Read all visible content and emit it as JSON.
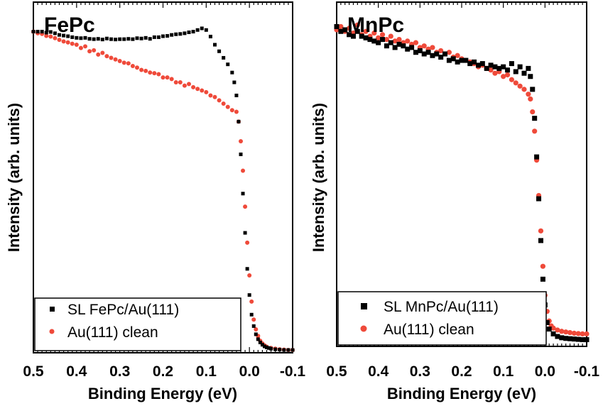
{
  "colors": {
    "sl": "#000000",
    "clean": "#ef4a3a"
  },
  "chart_data": [
    {
      "type": "scatter",
      "title": "FePc",
      "xlabel": "Binding Energy (eV)",
      "ylabel": "Intensity (arb. units)",
      "xlim": [
        0.5,
        -0.1
      ],
      "ylim": [
        0,
        1.05
      ],
      "x_ticks": [
        0.5,
        0.4,
        0.3,
        0.2,
        0.1,
        0.0,
        -0.1
      ],
      "x_tick_labels": [
        "0.5",
        "0.4",
        "0.3",
        "0.2",
        "0.1",
        "0.0",
        "-0.1"
      ],
      "grid": false,
      "legend": {
        "placement": "bottom-left",
        "entries": [
          "SL FePc/Au(111)",
          "Au(111) clean"
        ]
      },
      "series": [
        {
          "name": "SL FePc/Au(111)",
          "color": "#000000",
          "x": [
            0.5,
            0.49,
            0.48,
            0.47,
            0.46,
            0.45,
            0.44,
            0.43,
            0.42,
            0.41,
            0.4,
            0.39,
            0.38,
            0.37,
            0.36,
            0.35,
            0.34,
            0.33,
            0.32,
            0.31,
            0.3,
            0.29,
            0.28,
            0.27,
            0.26,
            0.25,
            0.24,
            0.23,
            0.22,
            0.21,
            0.2,
            0.19,
            0.18,
            0.17,
            0.16,
            0.15,
            0.14,
            0.13,
            0.12,
            0.11,
            0.1,
            0.09,
            0.08,
            0.07,
            0.06,
            0.05,
            0.04,
            0.035,
            0.03,
            0.025,
            0.02,
            0.015,
            0.01,
            0.005,
            0.0,
            -0.005,
            -0.01,
            -0.015,
            -0.02,
            -0.025,
            -0.03,
            -0.035,
            -0.04,
            -0.045,
            -0.05,
            -0.06,
            -0.07,
            -0.08,
            -0.09,
            -0.1
          ],
          "y": [
            0.975,
            0.975,
            0.975,
            0.972,
            0.974,
            0.97,
            0.965,
            0.963,
            0.961,
            0.958,
            0.956,
            0.955,
            0.956,
            0.953,
            0.952,
            0.953,
            0.951,
            0.954,
            0.952,
            0.951,
            0.952,
            0.952,
            0.953,
            0.952,
            0.955,
            0.954,
            0.956,
            0.953,
            0.958,
            0.958,
            0.961,
            0.962,
            0.965,
            0.967,
            0.968,
            0.97,
            0.973,
            0.975,
            0.98,
            0.985,
            0.98,
            0.96,
            0.935,
            0.915,
            0.895,
            0.875,
            0.85,
            0.82,
            0.78,
            0.7,
            0.6,
            0.48,
            0.36,
            0.25,
            0.17,
            0.11,
            0.075,
            0.05,
            0.035,
            0.025,
            0.018,
            0.013,
            0.01,
            0.008,
            0.006,
            0.004,
            0.003,
            0.002,
            0.002,
            0.002
          ]
        },
        {
          "name": "Au(111) clean",
          "color": "#ef4a3a",
          "x": [
            0.5,
            0.49,
            0.48,
            0.47,
            0.46,
            0.45,
            0.44,
            0.43,
            0.42,
            0.41,
            0.4,
            0.39,
            0.38,
            0.37,
            0.36,
            0.35,
            0.34,
            0.33,
            0.32,
            0.31,
            0.3,
            0.29,
            0.28,
            0.27,
            0.26,
            0.25,
            0.24,
            0.23,
            0.22,
            0.21,
            0.2,
            0.19,
            0.18,
            0.17,
            0.16,
            0.15,
            0.14,
            0.13,
            0.12,
            0.11,
            0.1,
            0.09,
            0.08,
            0.07,
            0.06,
            0.05,
            0.04,
            0.03,
            0.025,
            0.02,
            0.015,
            0.01,
            0.005,
            0.0,
            -0.005,
            -0.01,
            -0.015,
            -0.02,
            -0.025,
            -0.03,
            -0.035,
            -0.04,
            -0.05,
            -0.06,
            -0.07,
            -0.08,
            -0.09,
            -0.1
          ],
          "y": [
            0.975,
            0.97,
            0.968,
            0.962,
            0.96,
            0.955,
            0.95,
            0.945,
            0.942,
            0.938,
            0.935,
            0.925,
            0.93,
            0.915,
            0.918,
            0.905,
            0.91,
            0.9,
            0.895,
            0.89,
            0.885,
            0.88,
            0.878,
            0.87,
            0.865,
            0.858,
            0.855,
            0.85,
            0.848,
            0.845,
            0.835,
            0.835,
            0.83,
            0.82,
            0.82,
            0.81,
            0.815,
            0.805,
            0.8,
            0.795,
            0.79,
            0.78,
            0.775,
            0.765,
            0.755,
            0.745,
            0.735,
            0.73,
            0.7,
            0.64,
            0.55,
            0.44,
            0.33,
            0.23,
            0.15,
            0.095,
            0.065,
            0.045,
            0.03,
            0.022,
            0.016,
            0.012,
            0.008,
            0.006,
            0.004,
            0.003,
            0.002,
            0.002
          ]
        }
      ]
    },
    {
      "type": "scatter",
      "title": "MnPc",
      "xlabel": "Binding Energy (eV)",
      "ylabel": "Intensity (arb. units)",
      "xlim": [
        0.5,
        -0.1
      ],
      "ylim": [
        0,
        1.05
      ],
      "x_ticks": [
        0.5,
        0.4,
        0.3,
        0.2,
        0.1,
        0.0,
        -0.1
      ],
      "x_tick_labels": [
        "0.5",
        "0.4",
        "0.3",
        "0.2",
        "0.1",
        "0.0",
        "-0.1"
      ],
      "grid": false,
      "legend": {
        "placement": "bottom-left",
        "entries": [
          "SL MnPc/Au(111)",
          "Au(111) clean"
        ]
      },
      "series": [
        {
          "name": "SL MnPc/Au(111)",
          "color": "#000000",
          "x": [
            0.5,
            0.49,
            0.48,
            0.47,
            0.46,
            0.45,
            0.44,
            0.43,
            0.42,
            0.41,
            0.4,
            0.39,
            0.38,
            0.37,
            0.36,
            0.35,
            0.34,
            0.33,
            0.32,
            0.31,
            0.3,
            0.29,
            0.28,
            0.27,
            0.26,
            0.25,
            0.24,
            0.23,
            0.22,
            0.21,
            0.2,
            0.19,
            0.18,
            0.17,
            0.16,
            0.15,
            0.14,
            0.13,
            0.12,
            0.11,
            0.1,
            0.09,
            0.08,
            0.07,
            0.06,
            0.05,
            0.04,
            0.035,
            0.03,
            0.025,
            0.02,
            0.015,
            0.01,
            0.005,
            0.0,
            -0.005,
            -0.01,
            -0.02,
            -0.03,
            -0.04,
            -0.05,
            -0.06,
            -0.07,
            -0.08,
            -0.09,
            -0.1
          ],
          "y": [
            0.985,
            0.97,
            0.975,
            0.96,
            0.955,
            0.97,
            0.955,
            0.95,
            0.945,
            0.94,
            0.935,
            0.945,
            0.925,
            0.935,
            0.92,
            0.93,
            0.925,
            0.915,
            0.92,
            0.905,
            0.91,
            0.9,
            0.905,
            0.895,
            0.9,
            0.89,
            0.9,
            0.88,
            0.885,
            0.875,
            0.88,
            0.88,
            0.87,
            0.875,
            0.865,
            0.87,
            0.855,
            0.865,
            0.86,
            0.855,
            0.86,
            0.85,
            0.87,
            0.845,
            0.86,
            0.84,
            0.855,
            0.83,
            0.79,
            0.7,
            0.58,
            0.45,
            0.32,
            0.2,
            0.12,
            0.065,
            0.045,
            0.03,
            0.022,
            0.018,
            0.016,
            0.015,
            0.014,
            0.013,
            0.012,
            0.012
          ]
        },
        {
          "name": "Au(111) clean",
          "color": "#ef4a3a",
          "x": [
            0.5,
            0.49,
            0.48,
            0.47,
            0.46,
            0.45,
            0.44,
            0.43,
            0.42,
            0.41,
            0.4,
            0.39,
            0.38,
            0.37,
            0.36,
            0.35,
            0.34,
            0.33,
            0.32,
            0.31,
            0.3,
            0.29,
            0.28,
            0.27,
            0.26,
            0.25,
            0.24,
            0.23,
            0.22,
            0.21,
            0.2,
            0.19,
            0.18,
            0.17,
            0.16,
            0.15,
            0.14,
            0.13,
            0.12,
            0.11,
            0.1,
            0.09,
            0.08,
            0.07,
            0.06,
            0.05,
            0.04,
            0.035,
            0.03,
            0.025,
            0.02,
            0.015,
            0.01,
            0.005,
            0.0,
            -0.005,
            -0.01,
            -0.015,
            -0.02,
            -0.03,
            -0.04,
            -0.05,
            -0.06,
            -0.07,
            -0.08,
            -0.09,
            -0.1
          ],
          "y": [
            0.975,
            0.985,
            0.97,
            0.98,
            0.965,
            0.99,
            0.96,
            0.97,
            0.955,
            0.965,
            0.95,
            0.96,
            0.945,
            0.955,
            0.94,
            0.945,
            0.935,
            0.94,
            0.93,
            0.935,
            0.92,
            0.925,
            0.915,
            0.92,
            0.905,
            0.91,
            0.9,
            0.905,
            0.89,
            0.895,
            0.885,
            0.88,
            0.875,
            0.87,
            0.86,
            0.865,
            0.855,
            0.85,
            0.84,
            0.845,
            0.83,
            0.835,
            0.82,
            0.81,
            0.8,
            0.79,
            0.775,
            0.76,
            0.72,
            0.66,
            0.57,
            0.46,
            0.35,
            0.24,
            0.15,
            0.1,
            0.07,
            0.055,
            0.048,
            0.042,
            0.038,
            0.036,
            0.034,
            0.032,
            0.031,
            0.03,
            0.03
          ]
        }
      ]
    }
  ]
}
